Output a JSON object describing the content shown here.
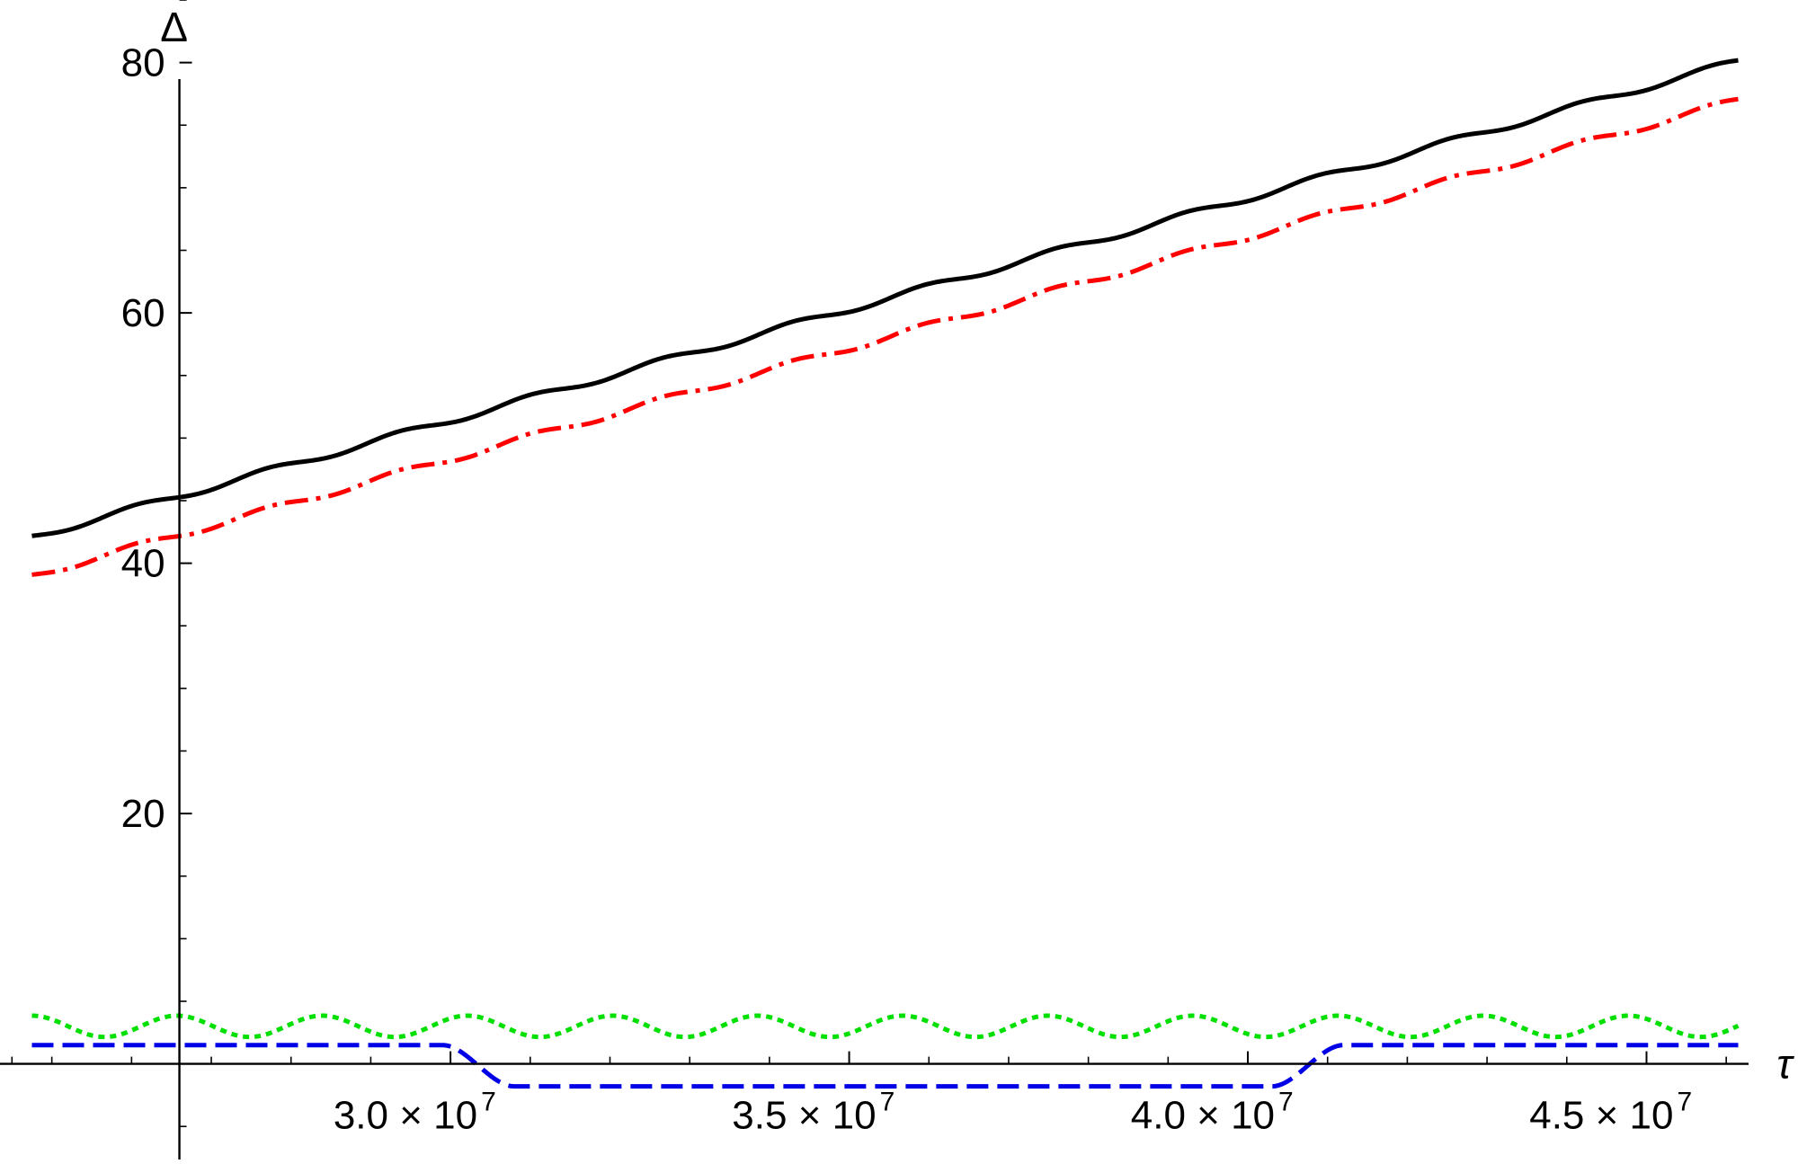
{
  "chart_data": {
    "type": "line",
    "xlabel": "τ",
    "ylabel": "Δ",
    "xlim": [
      24350000,
      46900000
    ],
    "ylim": [
      -8,
      85
    ],
    "grid": false,
    "legend": "none",
    "x_ticks": [
      {
        "value": 30000000,
        "mantissa": "3.0",
        "exponent": "7"
      },
      {
        "value": 35000000,
        "mantissa": "3.5",
        "exponent": "7"
      },
      {
        "value": 40000000,
        "mantissa": "4.0",
        "exponent": "7"
      },
      {
        "value": 45000000,
        "mantissa": "4.5",
        "exponent": "7"
      }
    ],
    "x_minor_ticks": [
      24500000,
      25000000,
      26000000,
      27000000,
      28000000,
      29000000,
      31000000,
      32000000,
      33000000,
      34000000,
      36000000,
      37000000,
      38000000,
      39000000,
      41000000,
      42000000,
      43000000,
      44000000,
      46000000
    ],
    "y_ticks": [
      20,
      40,
      60,
      80
    ],
    "y_minor_ticks": [
      -5,
      5,
      10,
      15,
      25,
      30,
      35,
      45,
      50,
      55,
      65,
      70,
      75,
      85
    ],
    "y_axis_x": 26600000,
    "x_axis_y": 0,
    "x_range": [
      24750000,
      46150000
    ],
    "series": [
      {
        "color": "#000000",
        "dash": "solid",
        "style": "staircase",
        "start": 42.1,
        "end": 80.1,
        "steps": 13
      },
      {
        "color": "#ff0000",
        "dash": "dashdot",
        "style": "staircase",
        "start": 39.0,
        "end": 77.0,
        "steps": 13
      },
      {
        "color": "#00e000",
        "dash": "dotted",
        "style": "oscillation",
        "mean": 3.0,
        "amplitude": 0.85,
        "period": 1820000
      },
      {
        "color": "#0000e6",
        "dash": "dashed",
        "style": "plateau",
        "high": 1.5,
        "low": -1.8,
        "drop_start": 29900000,
        "drop_end": 30800000,
        "rise_start": 40300000,
        "rise_end": 41200000
      }
    ]
  }
}
